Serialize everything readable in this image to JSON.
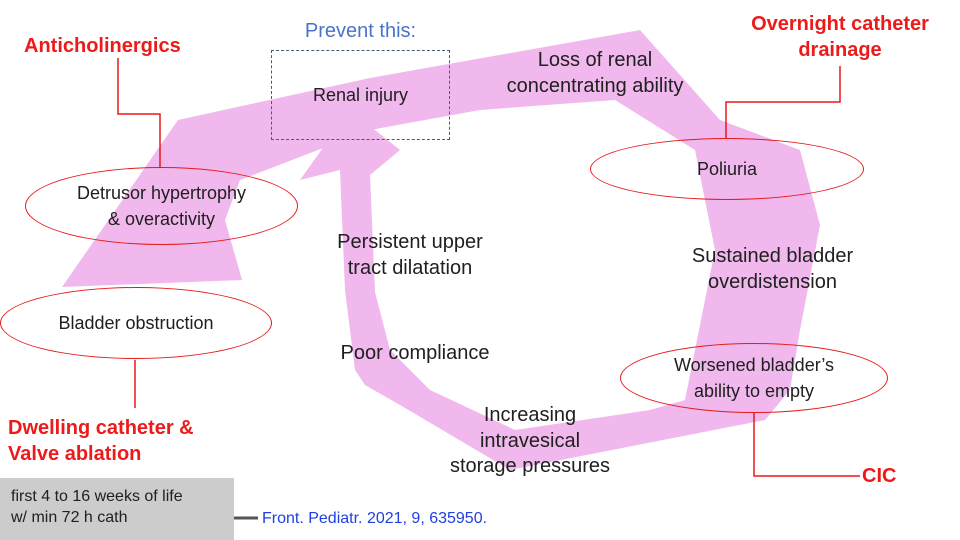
{
  "prevent": {
    "title": "Prevent this:",
    "box_label": "Renal injury"
  },
  "cycle": {
    "loss_concentrating": [
      "Loss of renal",
      "concentrating ability"
    ],
    "poliuria": "Poliuria",
    "sustained_overdistension": [
      "Sustained bladder",
      "overdistension"
    ],
    "worsened_emptying": [
      "Worsened bladder’s",
      "ability to empty"
    ],
    "increasing_pressures": [
      "Increasing",
      "intravesical",
      "storage pressures"
    ],
    "poor_compliance": "Poor compliance",
    "persistent_dilatation": [
      "Persistent upper",
      "tract dilatation"
    ],
    "bladder_obstruction": "Bladder obstruction",
    "detrusor": [
      "Detrusor hypertrophy",
      "& overactivity"
    ]
  },
  "interventions": {
    "anticholinergics": "Anticholinergics",
    "overnight_drainage": [
      "Overnight catheter",
      "drainage"
    ],
    "dwelling_catheter": [
      "Dwelling catheter &",
      "Valve ablation"
    ],
    "cic": "CIC"
  },
  "note": {
    "lines": [
      "first 4 to 16 weeks of life",
      "w/ min 72 h cath"
    ]
  },
  "citation": "Front. Pediatr. 2021, 9, 635950.",
  "colors": {
    "arrow_fill": "#f0b8ec",
    "ellipse_stroke": "#e8191a",
    "red_text": "#ee1a1a",
    "prevent_title": "#4a73c8",
    "citation": "#1f3fe0",
    "note_bg": "#cccccc"
  }
}
